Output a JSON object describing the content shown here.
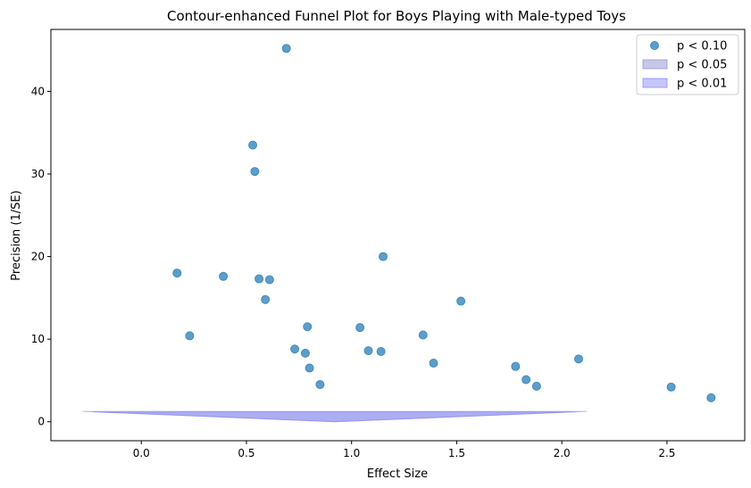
{
  "chart_data": {
    "type": "scatter",
    "title": "Contour-enhanced Funnel Plot for Boys Playing with Male-typed Toys",
    "xlabel": "Effect Size",
    "ylabel": "Precision (1/SE)",
    "xlim": [
      -0.43,
      2.87
    ],
    "ylim": [
      -2.3,
      47.5
    ],
    "xticks": [
      0.0,
      0.5,
      1.0,
      1.5,
      2.0,
      2.5
    ],
    "xtick_labels": [
      "0.0",
      "0.5",
      "1.0",
      "1.5",
      "2.0",
      "2.5"
    ],
    "yticks": [
      0,
      10,
      20,
      30,
      40
    ],
    "ytick_labels": [
      "0",
      "10",
      "20",
      "30",
      "40"
    ],
    "grid": false,
    "legend_position": "top-right",
    "colors": {
      "points": "#1f77b4",
      "p05": "#8f8fd0",
      "p01": "#8080ff"
    },
    "series": [
      {
        "name": "p < 0.10",
        "x": [
          0.69,
          0.53,
          0.54,
          0.17,
          0.39,
          0.56,
          0.61,
          0.59,
          0.23,
          1.15,
          1.52,
          0.79,
          1.04,
          1.34,
          0.73,
          0.78,
          1.08,
          1.14,
          1.39,
          0.8,
          1.78,
          2.08,
          0.85,
          1.83,
          1.88,
          2.52,
          2.71
        ],
        "y": [
          45.2,
          33.5,
          30.3,
          18.0,
          17.6,
          17.3,
          17.2,
          14.8,
          10.4,
          20.0,
          14.6,
          11.5,
          11.4,
          10.5,
          8.8,
          8.3,
          8.6,
          8.5,
          7.1,
          6.5,
          6.7,
          7.6,
          4.5,
          5.1,
          4.3,
          4.2,
          2.9
        ]
      }
    ],
    "contours": [
      {
        "name": "p < 0.05",
        "upper": {
          "x": [
            -0.23,
            0.92,
            2.07
          ],
          "y": [
            1.2,
            0.0,
            1.2
          ]
        },
        "lower": {
          "x": [
            -0.23,
            2.07
          ],
          "y": [
            1.2,
            1.2
          ]
        }
      },
      {
        "name": "p < 0.01",
        "upper": {
          "x": [
            -0.28,
            0.92,
            2.12
          ],
          "y": [
            1.25,
            0.0,
            1.25
          ]
        },
        "lower": {
          "x": [
            -0.28,
            2.12
          ],
          "y": [
            1.25,
            1.25
          ]
        }
      }
    ]
  }
}
